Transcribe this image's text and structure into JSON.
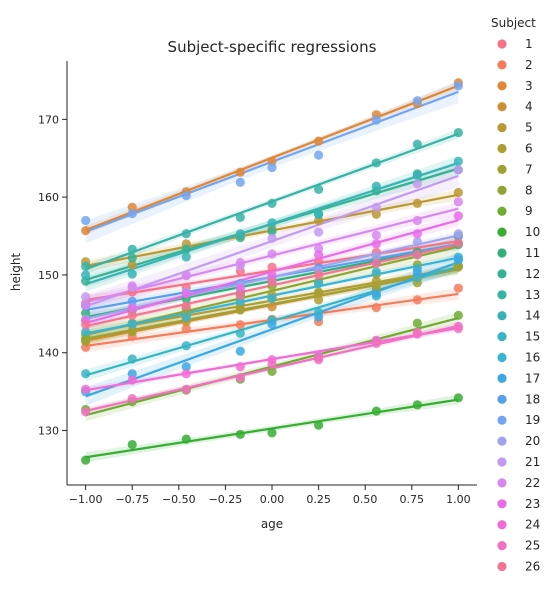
{
  "chart_data": {
    "type": "scatter",
    "title": "Subject-specific regressions",
    "xlabel": "age",
    "ylabel": "height",
    "xlim": [
      -1.1,
      1.1
    ],
    "ylim": [
      123.0,
      177.5
    ],
    "x_ticks": [
      -1.0,
      -0.75,
      -0.5,
      -0.25,
      0.0,
      0.25,
      0.5,
      0.75,
      1.0
    ],
    "x_tick_labels": [
      "−1.00",
      "−0.75",
      "−0.50",
      "−0.25",
      "0.00",
      "0.25",
      "0.50",
      "0.75",
      "1.00"
    ],
    "y_ticks": [
      130,
      140,
      150,
      160,
      170
    ],
    "y_tick_labels": [
      "130",
      "140",
      "150",
      "160",
      "170"
    ],
    "grid": false,
    "legend_title": "Subject",
    "legend_position": "right",
    "x": [
      -1.0,
      -0.75,
      -0.46,
      -0.17,
      0.0,
      0.25,
      0.56,
      0.78,
      1.0
    ],
    "series": [
      {
        "name": "1",
        "color": "#f77189",
        "values": [
          146.4,
          147.8,
          148.4,
          150.5,
          151.0,
          151.7,
          152.9,
          153.1,
          154.1
        ]
      },
      {
        "name": "2",
        "color": "#f57b5a",
        "values": [
          140.7,
          142.1,
          143.1,
          143.6,
          144.3,
          144.0,
          145.8,
          146.8,
          148.3
        ]
      },
      {
        "name": "3",
        "color": "#e18632",
        "values": [
          155.7,
          158.7,
          160.7,
          163.2,
          164.6,
          167.2,
          170.6,
          172.0,
          174.7
        ]
      },
      {
        "name": "4",
        "color": "#cc8f32",
        "values": [
          141.5,
          142.8,
          144.0,
          145.6,
          145.9,
          147.6,
          148.0,
          149.7,
          151.1
        ]
      },
      {
        "name": "5",
        "color": "#bb9832",
        "values": [
          151.7,
          151.3,
          154.0,
          155.0,
          155.9,
          157.0,
          157.8,
          159.2,
          160.6
        ]
      },
      {
        "name": "6",
        "color": "#ae9d31",
        "values": [
          142.3,
          143.6,
          144.8,
          146.3,
          147.4,
          146.8,
          149.2,
          149.6,
          151.2
        ]
      },
      {
        "name": "7",
        "color": "#9fa131",
        "values": [
          141.5,
          142.7,
          144.4,
          145.5,
          147.0,
          147.8,
          148.3,
          149.0,
          151.0
        ]
      },
      {
        "name": "8",
        "color": "#8ea631",
        "values": [
          141.9,
          143.8,
          145.6,
          147.4,
          148.6,
          149.1,
          150.1,
          151.3,
          155.0
        ]
      },
      {
        "name": "9",
        "color": "#6fac31",
        "values": [
          132.7,
          133.7,
          135.2,
          136.6,
          137.6,
          139.4,
          141.5,
          143.8,
          144.8
        ]
      },
      {
        "name": "10",
        "color": "#35ae32",
        "values": [
          126.2,
          128.2,
          128.9,
          129.5,
          129.7,
          130.7,
          132.5,
          133.3,
          134.2
        ]
      },
      {
        "name": "11",
        "color": "#33b07a",
        "values": [
          145.1,
          145.5,
          146.9,
          147.7,
          149.5,
          150.6,
          151.9,
          152.9,
          153.9
        ]
      },
      {
        "name": "12",
        "color": "#34b293",
        "values": [
          149.2,
          152.2,
          153.3,
          154.8,
          155.6,
          157.8,
          160.8,
          163.0,
          163.5
        ]
      },
      {
        "name": "13",
        "color": "#35b3a6",
        "values": [
          151.1,
          153.3,
          155.3,
          157.4,
          159.2,
          161.0,
          164.4,
          166.8,
          168.3
        ]
      },
      {
        "name": "14",
        "color": "#36b4b6",
        "values": [
          150.0,
          150.1,
          152.3,
          155.3,
          156.7,
          157.8,
          161.4,
          162.8,
          164.6
        ]
      },
      {
        "name": "15",
        "color": "#37b5c4",
        "values": [
          137.3,
          139.2,
          140.9,
          142.5,
          144.2,
          145.2,
          147.3,
          149.7,
          151.9
        ]
      },
      {
        "name": "16",
        "color": "#38b4d5",
        "values": [
          142.7,
          143.7,
          144.6,
          146.6,
          147.0,
          148.9,
          150.4,
          150.8,
          152.3
        ]
      },
      {
        "name": "17",
        "color": "#39a9e4",
        "values": [
          135.0,
          137.3,
          138.2,
          140.2,
          143.7,
          144.6,
          147.6,
          150.3,
          152.0
        ]
      },
      {
        "name": "18",
        "color": "#56a0ee",
        "values": [
          146.0,
          146.6,
          147.6,
          148.9,
          149.3,
          150.9,
          151.6,
          152.6,
          155.0
        ]
      },
      {
        "name": "19",
        "color": "#72a6f2",
        "values": [
          157.0,
          157.9,
          160.2,
          161.9,
          163.8,
          165.4,
          169.9,
          172.4,
          174.3
        ]
      },
      {
        "name": "20",
        "color": "#a2a3ee",
        "values": [
          144.3,
          145.8,
          147.8,
          148.7,
          149.4,
          150.6,
          152.4,
          154.3,
          155.3
        ]
      },
      {
        "name": "21",
        "color": "#c39af2",
        "values": [
          147.2,
          148.4,
          150.0,
          151.2,
          154.7,
          155.5,
          158.7,
          161.7,
          163.5
        ]
      },
      {
        "name": "22",
        "color": "#d986f0",
        "values": [
          146.1,
          148.6,
          149.9,
          151.6,
          152.7,
          153.4,
          155.1,
          157.0,
          159.4
        ]
      },
      {
        "name": "23",
        "color": "#ea6bea",
        "values": [
          144.1,
          145.7,
          147.6,
          148.3,
          150.0,
          152.6,
          154.0,
          155.3,
          157.6
        ]
      },
      {
        "name": "24",
        "color": "#f26bd6",
        "values": [
          135.3,
          136.5,
          137.3,
          138.2,
          139.1,
          139.6,
          141.6,
          142.4,
          143.4
        ]
      },
      {
        "name": "25",
        "color": "#f46fc2",
        "values": [
          132.4,
          134.1,
          135.3,
          136.8,
          138.5,
          139.1,
          141.2,
          142.6,
          143.1
        ]
      },
      {
        "name": "26",
        "color": "#f57393",
        "values": [
          143.6,
          144.8,
          146.0,
          147.4,
          149.1,
          150.0,
          151.5,
          152.6,
          154.1
        ]
      }
    ]
  }
}
